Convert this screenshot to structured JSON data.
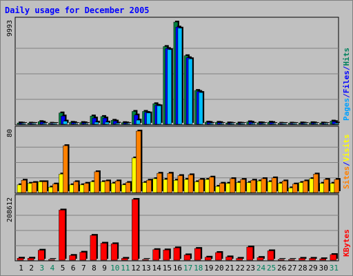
{
  "chart_data": {
    "type": "bar",
    "title": "Daily usage for December 2005",
    "categories": [
      "1",
      "2",
      "3",
      "4",
      "5",
      "6",
      "7",
      "8",
      "9",
      "10",
      "11",
      "12",
      "13",
      "14",
      "15",
      "16",
      "17",
      "18",
      "19",
      "20",
      "21",
      "22",
      "23",
      "24",
      "25",
      "26",
      "27",
      "28",
      "29",
      "30",
      "31"
    ],
    "weekend_days": [
      "3",
      "4",
      "10",
      "11",
      "17",
      "18",
      "24",
      "25",
      "31"
    ],
    "panels": [
      {
        "name": "requests",
        "ymax": 9993,
        "ymax_label": "9993",
        "legend": [
          {
            "label": "Pages",
            "color": "#00a0ff"
          },
          {
            "label": "/",
            "color": "#0000ff"
          },
          {
            "label": "Files",
            "color": "#0000ff"
          },
          {
            "label": "/",
            "color": "#0000ff"
          },
          {
            "label": "Hits",
            "color": "#00805c"
          }
        ],
        "series": [
          {
            "name": "Hits",
            "color": "#008040",
            "values": [
              120,
              100,
              250,
              90,
              1100,
              180,
              160,
              800,
              750,
              380,
              150,
              1250,
              1250,
              2000,
              7600,
              9993,
              6700,
              3300,
              200,
              180,
              120,
              110,
              230,
              140,
              190,
              90,
              100,
              120,
              140,
              110,
              300
            ]
          },
          {
            "name": "Files",
            "color": "#0000ff",
            "values": [
              100,
              80,
              200,
              70,
              800,
              150,
              130,
              600,
              600,
              300,
              120,
              900,
              1150,
              1850,
              7400,
              9500,
              6500,
              3200,
              170,
              150,
              100,
              90,
              190,
              120,
              160,
              70,
              80,
              100,
              120,
              90,
              250
            ]
          },
          {
            "name": "Pages",
            "color": "#00bfff",
            "values": [
              50,
              40,
              80,
              30,
              300,
              60,
              50,
              200,
              200,
              100,
              50,
              400,
              1100,
              1800,
              7300,
              9400,
              6400,
              3100,
              80,
              60,
              40,
              30,
              80,
              50,
              60,
              30,
              30,
              40,
              50,
              30,
              100
            ]
          }
        ]
      },
      {
        "name": "visits",
        "ymax": 80,
        "ymax_label": "80",
        "legend": [
          {
            "label": "Sites",
            "color": "#ff8000"
          },
          {
            "label": "/",
            "color": "#0000ff"
          },
          {
            "label": "Visits",
            "color": "#ffff00"
          }
        ],
        "series": [
          {
            "name": "Visits",
            "color": "#ffff00",
            "values": [
              10,
              12,
              14,
              7,
              24,
              10,
              10,
              14,
              14,
              12,
              10,
              45,
              13,
              18,
              17,
              16,
              17,
              14,
              17,
              8,
              12,
              13,
              13,
              15,
              14,
              12,
              6,
              13,
              18,
              12,
              12
            ]
          },
          {
            "name": "Sites",
            "color": "#ff8000",
            "values": [
              16,
              13,
              14,
              11,
              61,
              14,
              12,
              27,
              15,
              15,
              13,
              80,
              16,
              25,
              25,
              22,
              23,
              17,
              20,
              12,
              18,
              17,
              16,
              18,
              19,
              15,
              11,
              15,
              24,
              17,
              17
            ]
          }
        ]
      },
      {
        "name": "kbytes",
        "ymax": 208612,
        "ymax_label": "208612",
        "legend": [
          {
            "label": "KBytes",
            "color": "#ff0000"
          }
        ],
        "series": [
          {
            "name": "KBytes",
            "color": "#ff0000",
            "values": [
              6500,
              6500,
              34000,
              1200,
              172000,
              16000,
              27000,
              85000,
              58000,
              56000,
              6000,
              208612,
              1200,
              36000,
              35000,
              42000,
              18000,
              40000,
              10000,
              26000,
              11000,
              6000,
              45000,
              9000,
              32000,
              1000,
              1200,
              6000,
              6000,
              4500,
              19000
            ]
          }
        ]
      }
    ]
  }
}
